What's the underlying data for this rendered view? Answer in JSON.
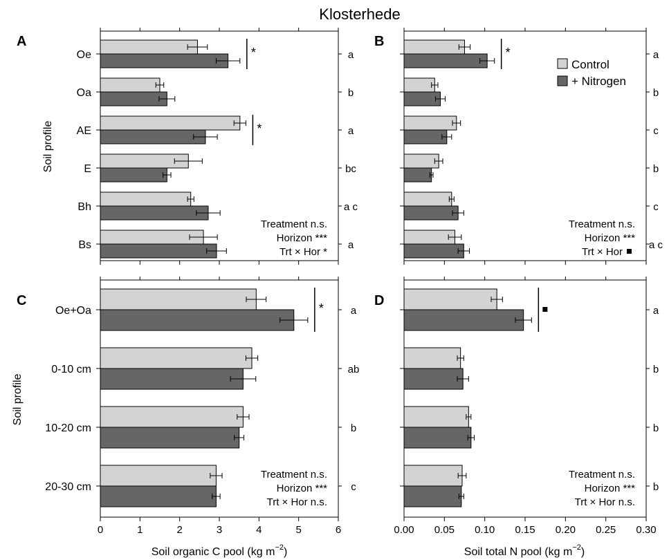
{
  "figure_title": "Klosterhede",
  "colors": {
    "control": "#d3d3d3",
    "nitrogen": "#666666",
    "stroke": "#000000"
  },
  "legend": {
    "control": "Control",
    "nitrogen": "+ Nitrogen"
  },
  "chart_data": [
    {
      "type": "bar",
      "panel": "A",
      "orientation": "horizontal",
      "categories": [
        "Oe",
        "Oa",
        "AE",
        "E",
        "Bh",
        "Bs"
      ],
      "series": [
        {
          "name": "Control",
          "values": [
            2.45,
            1.5,
            3.52,
            2.22,
            2.28,
            2.6
          ],
          "errors": [
            0.25,
            0.1,
            0.15,
            0.35,
            0.08,
            0.35
          ]
        },
        {
          "name": "+ Nitrogen",
          "values": [
            3.22,
            1.68,
            2.65,
            1.68,
            2.72,
            2.93
          ],
          "errors": [
            0.3,
            0.2,
            0.3,
            0.1,
            0.3,
            0.25
          ]
        }
      ],
      "significance": [
        {
          "category_index": 0,
          "mark": "*"
        },
        {
          "category_index": 2,
          "mark": "*"
        }
      ],
      "letters": [
        "a",
        "b",
        "a",
        "bc",
        "a c",
        "a"
      ],
      "stats": [
        "Treatment n.s.",
        "Horizon ***",
        "Trt × Hor *"
      ],
      "ylabel": "Soil profile",
      "xlim": [
        0,
        6
      ]
    },
    {
      "type": "bar",
      "panel": "B",
      "orientation": "horizontal",
      "categories": [
        "Oe",
        "Oa",
        "AE",
        "E",
        "Bh",
        "Bs"
      ],
      "series": [
        {
          "name": "Control",
          "values": [
            0.075,
            0.038,
            0.065,
            0.043,
            0.059,
            0.063
          ],
          "errors": [
            0.007,
            0.004,
            0.005,
            0.005,
            0.003,
            0.008
          ]
        },
        {
          "name": "+ Nitrogen",
          "values": [
            0.103,
            0.045,
            0.053,
            0.034,
            0.067,
            0.074
          ],
          "errors": [
            0.009,
            0.006,
            0.006,
            0.002,
            0.007,
            0.007
          ]
        }
      ],
      "significance": [
        {
          "category_index": 0,
          "mark": "*"
        }
      ],
      "letters": [
        "a",
        "b",
        "c",
        "b",
        "c",
        "a c"
      ],
      "stats": [
        "Treatment n.s.",
        "Horizon ***",
        "Trt × Hor"
      ],
      "xlim": [
        0,
        0.3
      ]
    },
    {
      "type": "bar",
      "panel": "C",
      "orientation": "horizontal",
      "categories": [
        "Oe+Oa",
        "0-10 cm",
        "10-20 cm",
        "20-30 cm"
      ],
      "series": [
        {
          "name": "Control",
          "values": [
            3.93,
            3.82,
            3.6,
            2.92
          ],
          "errors": [
            0.25,
            0.15,
            0.15,
            0.15
          ]
        },
        {
          "name": "+ Nitrogen",
          "values": [
            4.88,
            3.6,
            3.5,
            2.92
          ],
          "errors": [
            0.35,
            0.32,
            0.12,
            0.1
          ]
        }
      ],
      "significance": [
        {
          "category_index": 0,
          "mark": "*"
        }
      ],
      "letters": [
        "a",
        "ab",
        "b",
        "c"
      ],
      "stats": [
        "Treatment n.s.",
        "Horizon ***",
        "Trt × Hor n.s."
      ],
      "xlabel": "Soil organic C pool (kg m",
      "xlabel_sup": "−2",
      "xlabel_end": ")",
      "ylabel": "Soil profile",
      "xlim": [
        0,
        6
      ],
      "xticks": [
        "0",
        "1",
        "2",
        "3",
        "4",
        "5",
        "6"
      ]
    },
    {
      "type": "bar",
      "panel": "D",
      "orientation": "horizontal",
      "categories": [
        "Oe+Oa",
        "0-10 cm",
        "10-20 cm",
        "20-30 cm"
      ],
      "series": [
        {
          "name": "Control",
          "values": [
            0.115,
            0.07,
            0.08,
            0.072
          ],
          "errors": [
            0.007,
            0.004,
            0.003,
            0.005
          ]
        },
        {
          "name": "+ Nitrogen",
          "values": [
            0.148,
            0.073,
            0.083,
            0.071
          ],
          "errors": [
            0.01,
            0.007,
            0.004,
            0.003
          ]
        }
      ],
      "significance": [
        {
          "category_index": 0,
          "mark": "square"
        }
      ],
      "letters": [
        "a",
        "b",
        "b",
        "b"
      ],
      "stats": [
        "Treatment n.s.",
        "Horizon ***",
        "Trt × Hor n.s."
      ],
      "xlabel": "Soil total N pool (kg m",
      "xlabel_sup": "−2",
      "xlabel_end": ")",
      "xlim": [
        0,
        0.3
      ],
      "xticks": [
        "0.00",
        "0.05",
        "0.10",
        "0.15",
        "0.20",
        "0.25",
        "0.30"
      ]
    }
  ]
}
